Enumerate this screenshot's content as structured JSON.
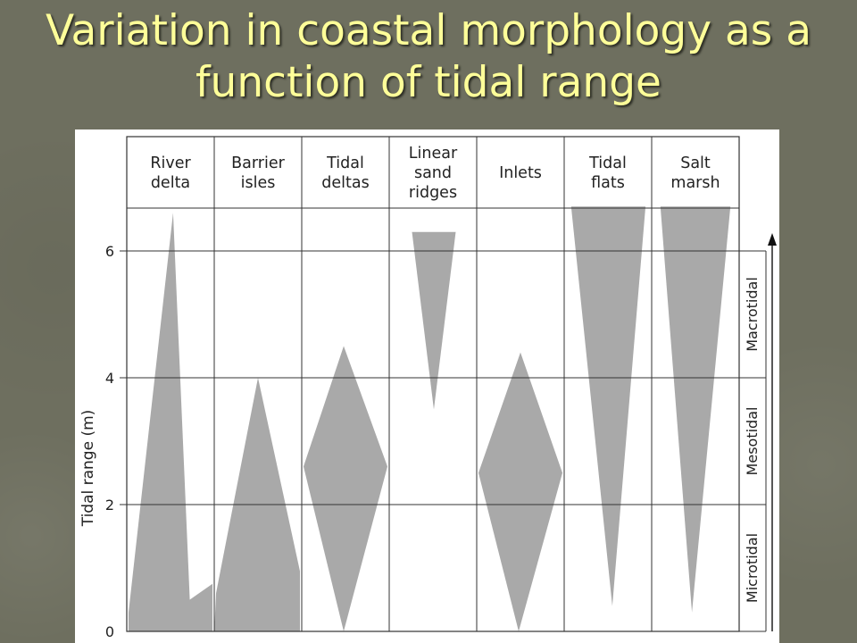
{
  "slide": {
    "title_line1": "Variation in coastal morphology as a",
    "title_line2": "function of tidal range"
  },
  "colors": {
    "background": "#6e6f5f",
    "title": "#ffff99",
    "shape_fill": "#a9a9a9",
    "grid": "#333333"
  },
  "chart_data": {
    "type": "area",
    "ylabel": "Tidal range (m)",
    "ylim": [
      0,
      6.7
    ],
    "yticks": [
      0,
      2,
      4,
      6
    ],
    "grid": "horizontal at 2, 4, 6",
    "categories": [
      {
        "name": "River delta",
        "lines": [
          "River",
          "delta"
        ],
        "profile": [
          [
            0,
            0
          ],
          [
            0.8,
            0.53
          ],
          [
            6.6,
            0.5
          ],
          [
            0.8,
            0.53
          ],
          [
            0,
            0
          ]
        ]
      },
      {
        "name": "Barrier isles",
        "lines": [
          "Barrier",
          "isles"
        ],
        "profile": [
          [
            0,
            0
          ],
          [
            4.0,
            0.47
          ],
          [
            0,
            0
          ]
        ]
      },
      {
        "name": "Tidal deltas",
        "lines": [
          "Tidal",
          "deltas"
        ],
        "profile": [
          [
            0,
            0
          ],
          [
            2.6,
            0.5
          ],
          [
            4.5,
            0.5
          ],
          [
            2.6,
            0.5
          ],
          [
            0,
            0
          ]
        ]
      },
      {
        "name": "Linear sand ridges",
        "lines": [
          "Linear",
          "sand",
          "ridges"
        ],
        "profile": [
          [
            6.3,
            0.5
          ],
          [
            3.5,
            0.5
          ]
        ]
      },
      {
        "name": "Inlets",
        "lines": [
          "Inlets"
        ],
        "profile": [
          [
            0,
            0.5
          ],
          [
            2.5,
            0.5
          ],
          [
            4.4,
            0.5
          ]
        ]
      },
      {
        "name": "Tidal flats",
        "lines": [
          "Tidal",
          "flats"
        ],
        "profile": [
          [
            0.4,
            0.5
          ],
          [
            6.7,
            0.5
          ]
        ]
      },
      {
        "name": "Salt marsh",
        "lines": [
          "Salt",
          "marsh"
        ],
        "profile": [
          [
            0.3,
            0.5
          ],
          [
            6.7,
            0.5
          ]
        ]
      }
    ],
    "zones": [
      {
        "name": "Microtidal",
        "range": [
          0,
          2
        ]
      },
      {
        "name": "Mesotidal",
        "range": [
          2,
          4
        ]
      },
      {
        "name": "Macrotidal",
        "range": [
          4,
          6.7
        ]
      }
    ]
  }
}
